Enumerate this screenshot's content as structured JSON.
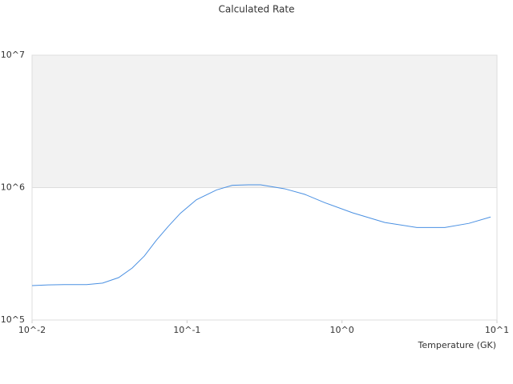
{
  "chart_data": {
    "type": "line",
    "title": "Calculated Rate",
    "x_label": "Temperature (GK)",
    "x": [
      0.01,
      0.0127,
      0.0161,
      0.0225,
      0.0285,
      0.0362,
      0.0443,
      0.053,
      0.0634,
      0.0757,
      0.0906,
      0.115,
      0.155,
      0.196,
      0.249,
      0.298,
      0.426,
      0.574,
      0.773,
      1.17,
      1.89,
      3.04,
      4.61,
      6.59,
      9.1
    ],
    "series": [
      {
        "color": "#4a90e2",
        "values": [
          182000,
          184000,
          185000,
          185000,
          190000,
          209000,
          247000,
          304000,
          400000,
          510000,
          640000,
          810000,
          960000,
          1040000,
          1050000,
          1050000,
          980000,
          890000,
          770000,
          645000,
          545000,
          500000,
          500000,
          537000,
          600000
        ]
      }
    ],
    "xscale": "log",
    "yscale": "log",
    "xlim": [
      0.01,
      10
    ],
    "ylim": [
      100000,
      10000000
    ],
    "xticks": [
      {
        "value": 0.01,
        "label": "10^-2"
      },
      {
        "value": 0.1,
        "label": "10^-1"
      },
      {
        "value": 1,
        "label": "10^0"
      },
      {
        "value": 10,
        "label": "10^1"
      }
    ],
    "yticks": [
      {
        "value": 100000,
        "label": "10^5"
      },
      {
        "value": 1000000,
        "label": "10^6"
      },
      {
        "value": 10000000,
        "label": "10^7"
      }
    ],
    "grid": true,
    "band_color": "#f2f2f2"
  }
}
